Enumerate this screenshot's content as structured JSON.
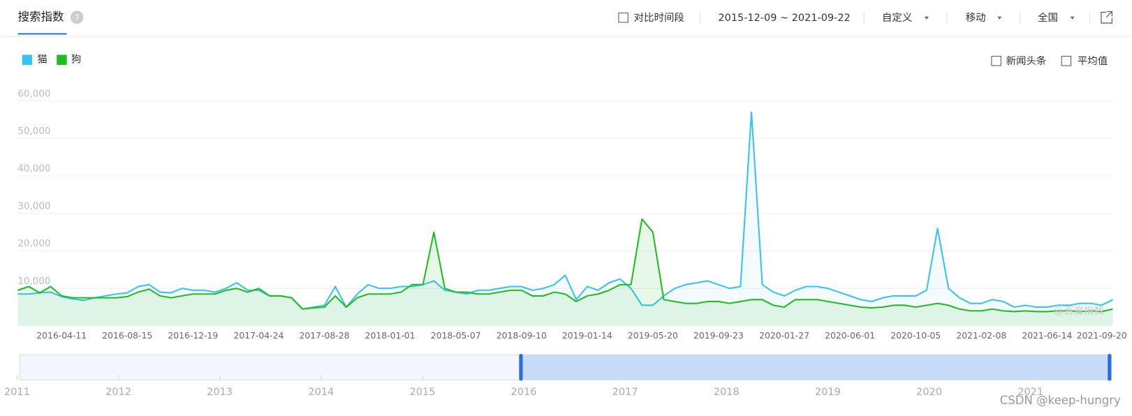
{
  "header": {
    "title": "搜索指数",
    "help": "?",
    "compare": "对比时间段",
    "date_range": "2015-12-09 ~ 2021-09-22",
    "custom": "自定义",
    "device": "移动",
    "region": "全国"
  },
  "options": {
    "news": "新闻头条",
    "average": "平均值"
  },
  "watermark": {
    "baidu": "@百度指数",
    "csdn": "CSDN @keep-hungry"
  },
  "navigator": {
    "years": [
      "2011",
      "2012",
      "2013",
      "2014",
      "2015",
      "2016",
      "2017",
      "2018",
      "2019",
      "2020",
      "2021"
    ]
  },
  "chart_data": {
    "type": "line",
    "categories": [
      null,
      null,
      null,
      null,
      "2016-04-11",
      null,
      null,
      null,
      null,
      null,
      "2016-08-15",
      null,
      null,
      null,
      null,
      null,
      "2016-12-19",
      null,
      null,
      null,
      null,
      null,
      "2017-04-24",
      null,
      null,
      null,
      null,
      null,
      "2017-08-28",
      null,
      null,
      null,
      null,
      null,
      "2018-01-01",
      null,
      null,
      null,
      null,
      null,
      "2018-05-07",
      null,
      null,
      null,
      null,
      null,
      "2018-09-10",
      null,
      null,
      null,
      null,
      null,
      "2019-01-14",
      null,
      null,
      null,
      null,
      null,
      "2019-05-20",
      null,
      null,
      null,
      null,
      null,
      "2019-09-23",
      null,
      null,
      null,
      null,
      null,
      "2020-01-27",
      null,
      null,
      null,
      null,
      null,
      "2020-06-01",
      null,
      null,
      null,
      null,
      null,
      "2020-10-05",
      null,
      null,
      null,
      null,
      null,
      "2021-02-08",
      null,
      null,
      null,
      null,
      null,
      "2021-06-14",
      null,
      null,
      null,
      null,
      "2021-09-20",
      null
    ],
    "series": [
      {
        "name": "猫",
        "color": "#36c3f2",
        "values": [
          8500,
          8500,
          8800,
          9000,
          7800,
          7200,
          6800,
          7500,
          8000,
          8500,
          8800,
          10500,
          11000,
          9000,
          8800,
          10000,
          9500,
          9500,
          9000,
          10000,
          11500,
          9500,
          9500,
          8000,
          8000,
          7500,
          4500,
          5000,
          5500,
          10500,
          5000,
          8500,
          11000,
          10000,
          10000,
          10500,
          10500,
          11000,
          12000,
          9500,
          9000,
          8500,
          9500,
          9500,
          10000,
          10500,
          10500,
          9500,
          10000,
          11000,
          13500,
          7000,
          10500,
          9500,
          11500,
          12500,
          10000,
          5500,
          5500,
          8000,
          10000,
          11000,
          11500,
          12000,
          11000,
          10000,
          10500,
          57000,
          11000,
          9000,
          8000,
          9500,
          10500,
          10500,
          10000,
          9000,
          8000,
          7000,
          6500,
          7500,
          8000,
          8000,
          8000,
          9500,
          26000,
          10000,
          7500,
          6000,
          6000,
          7000,
          6500,
          5000,
          5500,
          5000,
          5000,
          5500,
          5500,
          6000,
          6000,
          5500,
          7000
        ]
      },
      {
        "name": "狗",
        "color": "#1fbd1f",
        "values": [
          9500,
          10500,
          8800,
          10500,
          8000,
          7500,
          7500,
          7500,
          7500,
          7500,
          7800,
          9000,
          9800,
          8000,
          7500,
          8000,
          8500,
          8500,
          8500,
          9500,
          10000,
          9000,
          10000,
          8000,
          8000,
          7500,
          4500,
          4800,
          5000,
          8000,
          5000,
          7500,
          8500,
          8500,
          8500,
          9000,
          11000,
          11000,
          25000,
          10000,
          9000,
          9000,
          8500,
          8500,
          9000,
          9500,
          9500,
          8000,
          8000,
          9000,
          8500,
          6500,
          8000,
          8500,
          9500,
          11000,
          11000,
          28500,
          25000,
          7000,
          6500,
          6000,
          6000,
          6500,
          6500,
          6000,
          6500,
          7000,
          7000,
          5500,
          5000,
          7000,
          7000,
          7000,
          6500,
          6000,
          5500,
          5000,
          4800,
          5000,
          5500,
          5500,
          5000,
          5500,
          6000,
          5500,
          4500,
          4000,
          4000,
          4500,
          4000,
          3800,
          4000,
          3800,
          3800,
          4000,
          4000,
          3800,
          4000,
          3800,
          4500
        ]
      }
    ],
    "ylim": [
      0,
      60000
    ],
    "yticks": [
      {
        "value": 10000,
        "label": "10,000"
      },
      {
        "value": 20000,
        "label": "20,000"
      },
      {
        "value": 30000,
        "label": "30,000"
      },
      {
        "value": 40000,
        "label": "40,000"
      },
      {
        "value": 50000,
        "label": "50,000"
      },
      {
        "value": 60000,
        "label": "60,000"
      }
    ],
    "grid": true
  }
}
